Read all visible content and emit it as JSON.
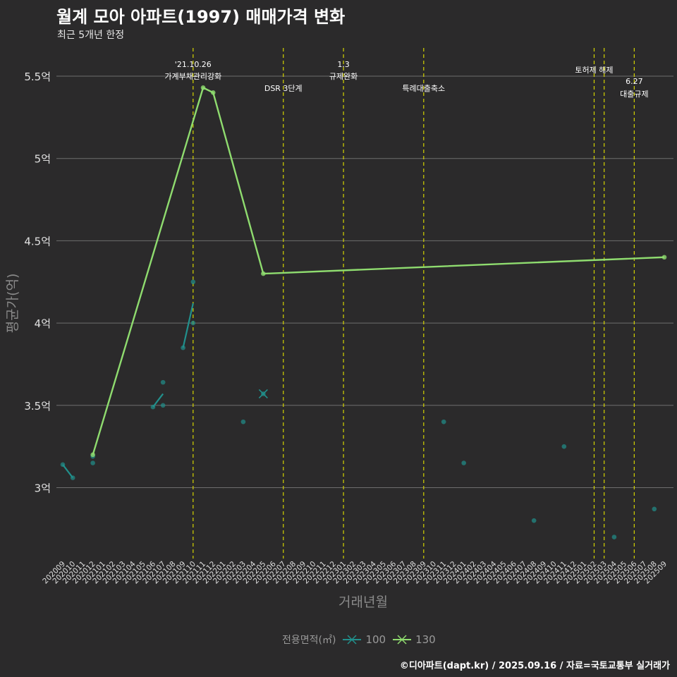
{
  "title": "월계 모아 아파트(1997) 매매가격 변화",
  "subtitle": "최근 5개년 한정",
  "caption": "©디아파트(dapt.kr) / 2025.09.16 / 자료=국토교통부 실거래가",
  "legend": {
    "title": "전용면적(㎡)",
    "items": [
      {
        "label": "100",
        "color": "#21908c"
      },
      {
        "label": "130",
        "color": "#8fdc6f"
      }
    ]
  },
  "chart_data": {
    "type": "line",
    "xlabel": "거래년월",
    "ylabel": "평균가(억)",
    "categories": [
      "202009",
      "202010",
      "202011",
      "202012",
      "202101",
      "202102",
      "202103",
      "202104",
      "202105",
      "202106",
      "202107",
      "202108",
      "202109",
      "202110",
      "202111",
      "202112",
      "202201",
      "202202",
      "202203",
      "202204",
      "202205",
      "202206",
      "202207",
      "202208",
      "202209",
      "202210",
      "202211",
      "202212",
      "202301",
      "202302",
      "202303",
      "202304",
      "202305",
      "202306",
      "202307",
      "202308",
      "202309",
      "202310",
      "202311",
      "202312",
      "202401",
      "202402",
      "202403",
      "202404",
      "202405",
      "202406",
      "202407",
      "202408",
      "202409",
      "202410",
      "202411",
      "202412",
      "202501",
      "202502",
      "202503",
      "202504",
      "202505",
      "202506",
      "202507",
      "202508",
      "202509"
    ],
    "y_ticks": [
      3,
      3.5,
      4,
      4.5,
      5,
      5.5
    ],
    "y_tick_labels": [
      "3억",
      "3.5억",
      "4억",
      "4.5억",
      "5억",
      "5.5억"
    ],
    "ylim": [
      2.55,
      5.7
    ],
    "series": [
      {
        "name": "100",
        "color": "#21908c",
        "line": [
          {
            "x": "202009",
            "y": 3.14
          },
          {
            "x": "202010",
            "y": 3.06
          },
          null,
          {
            "x": "202012",
            "y": 3.17
          },
          null,
          {
            "x": "202106",
            "y": 3.49
          },
          {
            "x": "202107",
            "y": 3.57
          },
          null,
          {
            "x": "202109",
            "y": 3.85
          },
          {
            "x": "202110",
            "y": 4.12
          }
        ],
        "points": [
          {
            "x": "202009",
            "y": 3.14
          },
          {
            "x": "202010",
            "y": 3.06
          },
          {
            "x": "202012",
            "y": 3.15
          },
          {
            "x": "202012",
            "y": 3.19
          },
          {
            "x": "202106",
            "y": 3.49
          },
          {
            "x": "202107",
            "y": 3.64
          },
          {
            "x": "202107",
            "y": 3.5
          },
          {
            "x": "202109",
            "y": 3.85
          },
          {
            "x": "202110",
            "y": 4.25
          },
          {
            "x": "202110",
            "y": 4.0
          },
          {
            "x": "202203",
            "y": 3.4
          },
          {
            "x": "202205",
            "y": 3.57
          },
          {
            "x": "202311",
            "y": 3.4
          },
          {
            "x": "202401",
            "y": 3.15
          },
          {
            "x": "202408",
            "y": 2.8
          },
          {
            "x": "202411",
            "y": 3.25
          },
          {
            "x": "202504",
            "y": 2.7
          },
          {
            "x": "202508",
            "y": 2.87
          }
        ]
      },
      {
        "name": "130",
        "color": "#8fdc6f",
        "line": [
          {
            "x": "202012",
            "y": 3.2
          },
          {
            "x": "202111",
            "y": 5.43
          },
          {
            "x": "202112",
            "y": 5.4
          },
          {
            "x": "202205",
            "y": 4.3
          },
          {
            "x": "202509",
            "y": 4.4
          }
        ],
        "points": [
          {
            "x": "202012",
            "y": 3.2
          },
          {
            "x": "202111",
            "y": 5.43
          },
          {
            "x": "202112",
            "y": 5.4
          },
          {
            "x": "202205",
            "y": 4.3
          },
          {
            "x": "202509",
            "y": 4.4
          }
        ]
      }
    ],
    "events": [
      {
        "x": "202110",
        "label1": "'21.10.26",
        "label2": "가계부채관리강화",
        "level": "top"
      },
      {
        "x": "202207",
        "label1": "",
        "label2": "DSR 3단계",
        "level": "low"
      },
      {
        "x": "202301",
        "label1": "1.3",
        "label2": "규제완화",
        "level": "top"
      },
      {
        "x": "202309",
        "label1": "",
        "label2": "특례대출축소",
        "level": "low"
      },
      {
        "x": "202502",
        "label1": "토허제 해제",
        "label2": "",
        "level": "mid"
      },
      {
        "x": "202503",
        "label1": "",
        "label2": "",
        "level": "none"
      },
      {
        "x": "202506",
        "label1": "6.27",
        "label2": "대출규제",
        "level": "right"
      }
    ]
  }
}
